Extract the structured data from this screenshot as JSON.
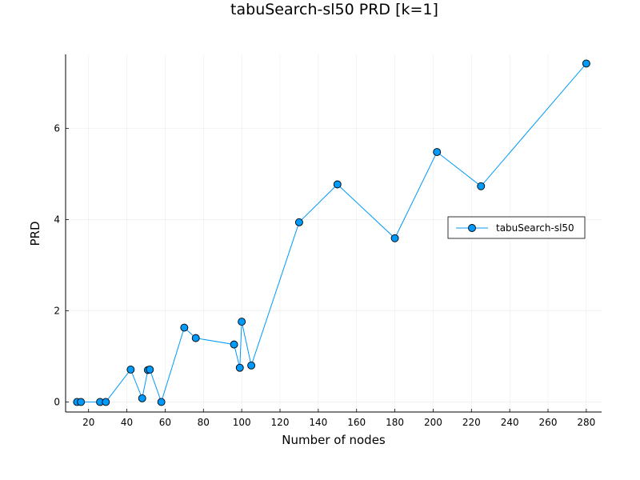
{
  "chart_data": {
    "type": "line",
    "title": "tabuSearch-sl50 PRD [k=1]",
    "xlabel": "Number of nodes",
    "ylabel": "PRD",
    "xlim": [
      8,
      288
    ],
    "ylim": [
      -0.22,
      7.62
    ],
    "xticks": [
      20,
      40,
      60,
      80,
      100,
      120,
      140,
      160,
      180,
      200,
      220,
      240,
      260,
      280
    ],
    "yticks": [
      0,
      2,
      4,
      6
    ],
    "grid": true,
    "legend": "right",
    "series": [
      {
        "name": "tabuSearch-sl50",
        "color": "#009AFA",
        "marker": "circle",
        "x": [
          14,
          16,
          26,
          29,
          42,
          48,
          51,
          52,
          58,
          70,
          76,
          96,
          99,
          100,
          105,
          130,
          150,
          180,
          202,
          225,
          280
        ],
        "y": [
          0,
          0,
          0,
          0,
          0.71,
          0.08,
          0.7,
          0.71,
          0.0,
          1.63,
          1.4,
          1.26,
          0.75,
          1.76,
          0.8,
          3.94,
          4.77,
          3.59,
          5.48,
          4.73,
          7.42
        ]
      }
    ]
  }
}
